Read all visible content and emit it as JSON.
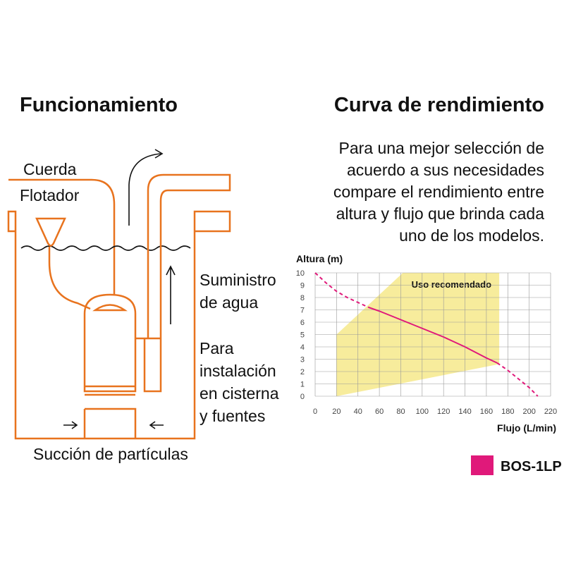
{
  "left": {
    "title": "Funcionamiento",
    "rope": "Cuerda",
    "float": "Flotador",
    "supply": [
      "Suministro",
      "de agua"
    ],
    "install": [
      "Para",
      "instalación",
      "en cisterna",
      "y fuentes"
    ],
    "suction": "Succión de partículas"
  },
  "right": {
    "title": "Curva de rendimiento",
    "description": [
      "Para una mejor selección de",
      "acuerdo a sus necesidades",
      "compare el rendimiento entre",
      "altura y flujo que brinda cada",
      "uno de los modelos."
    ]
  },
  "chart_data": {
    "type": "line",
    "y_label": "Altura (m)",
    "x_label": "Flujo (L/min)",
    "xlim": [
      0,
      220
    ],
    "xticks": [
      0,
      20,
      40,
      60,
      80,
      100,
      120,
      140,
      160,
      180,
      200,
      220
    ],
    "ylim": [
      0,
      10
    ],
    "yticks": [
      0,
      1,
      2,
      3,
      4,
      5,
      6,
      7,
      8,
      9,
      10
    ],
    "grid": true,
    "region": {
      "label": "Uso recomendado",
      "color": "#f7ec9c",
      "x": [
        20,
        172,
        172,
        82,
        20
      ],
      "y": [
        0,
        2.6,
        10,
        10,
        5
      ]
    },
    "series": [
      {
        "name": "BOS-1LP",
        "color": "#e0197a",
        "x": [
          0,
          10,
          20,
          30,
          40,
          50,
          60,
          80,
          100,
          120,
          140,
          160,
          170,
          180,
          190,
          200,
          208
        ],
        "values": [
          10,
          9.2,
          8.5,
          8.0,
          7.6,
          7.2,
          6.9,
          6.2,
          5.5,
          4.8,
          4.0,
          3.1,
          2.7,
          2.1,
          1.4,
          0.7,
          0
        ],
        "styles": [
          "dashed",
          "dashed",
          "dashed",
          "dashed",
          "dashed",
          "solid",
          "solid",
          "solid",
          "solid",
          "solid",
          "solid",
          "solid",
          "dashed",
          "dashed",
          "dashed",
          "dashed",
          "dashed"
        ]
      }
    ]
  }
}
